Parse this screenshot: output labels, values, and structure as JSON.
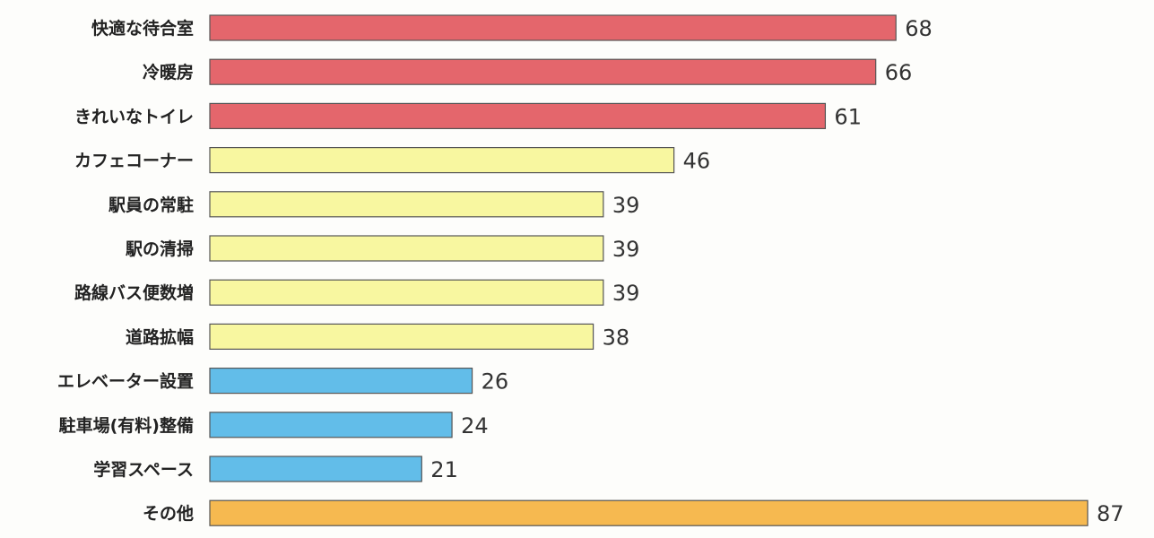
{
  "chart_data": {
    "type": "bar",
    "orientation": "horizontal",
    "title": "",
    "xlabel": "",
    "ylabel": "",
    "grid": false,
    "xlim": [
      0,
      87
    ],
    "categories": [
      "快適な待合室",
      "冷暖房",
      "きれいなトイレ",
      "カフェコーナー",
      "駅員の常駐",
      "駅の清掃",
      "路線バス便数増",
      "道路拡幅",
      "エレベーター設置",
      "駐車場(有料)整備",
      "学習スペース",
      "その他"
    ],
    "values": [
      68,
      66,
      61,
      46,
      39,
      39,
      39,
      38,
      26,
      24,
      21,
      87
    ],
    "bar_colors": [
      "#e4666c",
      "#e4666c",
      "#e4666c",
      "#f8f7a0",
      "#f8f7a0",
      "#f8f7a0",
      "#f8f7a0",
      "#f8f7a0",
      "#62bde9",
      "#62bde9",
      "#62bde9",
      "#f6b950"
    ],
    "bar_stroke": "#555555",
    "label_color": "#222222",
    "value_color": "#333333"
  }
}
